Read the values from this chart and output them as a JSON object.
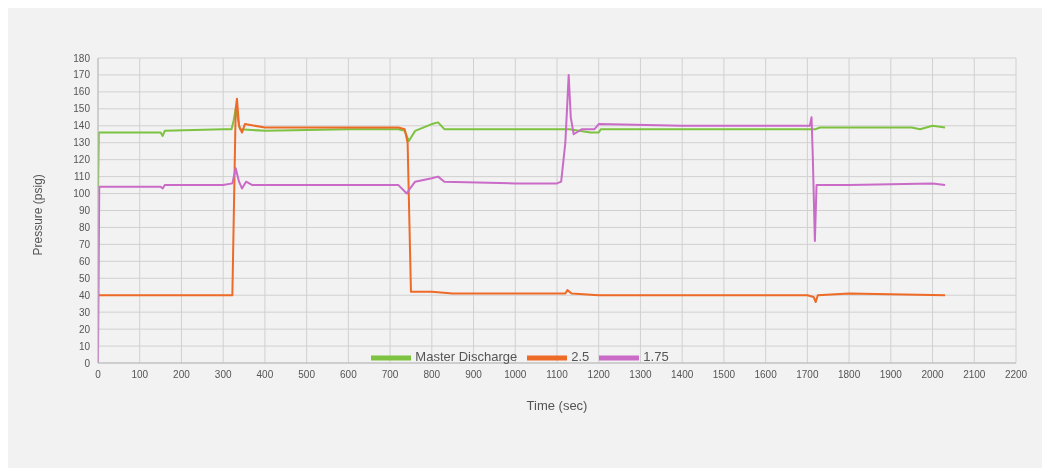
{
  "chart_data": {
    "type": "line",
    "xlabel": "Time (sec)",
    "ylabel": "Pressure (psig)",
    "xlim": [
      0,
      2200
    ],
    "xticks": [
      0,
      100,
      200,
      300,
      400,
      500,
      600,
      700,
      800,
      900,
      1000,
      1100,
      1200,
      1300,
      1400,
      1500,
      1600,
      1700,
      1800,
      1900,
      2000,
      2100,
      2200
    ],
    "ylim": [
      0,
      180
    ],
    "yticks": [
      0,
      10,
      20,
      30,
      40,
      50,
      60,
      70,
      80,
      90,
      100,
      110,
      120,
      130,
      140,
      150,
      160,
      170,
      180
    ],
    "grid": true,
    "legend": "bottom",
    "marker": "none",
    "line_style": "solid",
    "series": [
      {
        "name": "Master Discharge",
        "color": "#7dc241",
        "x": [
          0,
          2,
          150,
          155,
          160,
          300,
          320,
          325,
          330,
          340,
          400,
          600,
          720,
          735,
          745,
          760,
          800,
          815,
          830,
          1000,
          1100,
          1130,
          1180,
          1200,
          1205,
          1400,
          1700,
          1720,
          1730,
          1950,
          1970,
          2000,
          2030
        ],
        "values": [
          100,
          136,
          136,
          134,
          137,
          138,
          138,
          143,
          150,
          138,
          137,
          138,
          138,
          137,
          131,
          137,
          141,
          142,
          138,
          138,
          138,
          138,
          136,
          136,
          138,
          138,
          138,
          138,
          139,
          139,
          138,
          140,
          139
        ]
      },
      {
        "name": "2.5",
        "color": "#ed6a27",
        "x": [
          0,
          320,
          322,
          330,
          333,
          338,
          345,
          352,
          400,
          600,
          720,
          735,
          742,
          750,
          800,
          850,
          1100,
          1120,
          1125,
          1135,
          1200,
          1700,
          1715,
          1720,
          1725,
          1800,
          2030
        ],
        "values": [
          40,
          40,
          40,
          150,
          156,
          140,
          136,
          141,
          139,
          139,
          139,
          138,
          130,
          42,
          42,
          41,
          41,
          41,
          43,
          41,
          40,
          40,
          39,
          36,
          40,
          41,
          40
        ]
      },
      {
        "name": "1.75",
        "color": "#c96bc7",
        "x": [
          0,
          3,
          150,
          155,
          160,
          300,
          322,
          330,
          338,
          345,
          355,
          370,
          600,
          720,
          740,
          745,
          760,
          800,
          815,
          830,
          1000,
          1100,
          1110,
          1120,
          1128,
          1133,
          1140,
          1160,
          1190,
          1200,
          1400,
          1700,
          1706,
          1710,
          1713,
          1718,
          1722,
          1800,
          2000,
          2030
        ],
        "values": [
          0,
          104,
          104,
          103,
          105,
          105,
          106,
          115,
          107,
          103,
          107,
          105,
          105,
          105,
          100,
          102,
          107,
          109,
          110,
          107,
          106,
          106,
          107,
          130,
          170,
          145,
          135,
          138,
          138,
          141,
          140,
          140,
          140,
          145,
          122,
          72,
          105,
          105,
          106,
          105
        ]
      }
    ]
  }
}
